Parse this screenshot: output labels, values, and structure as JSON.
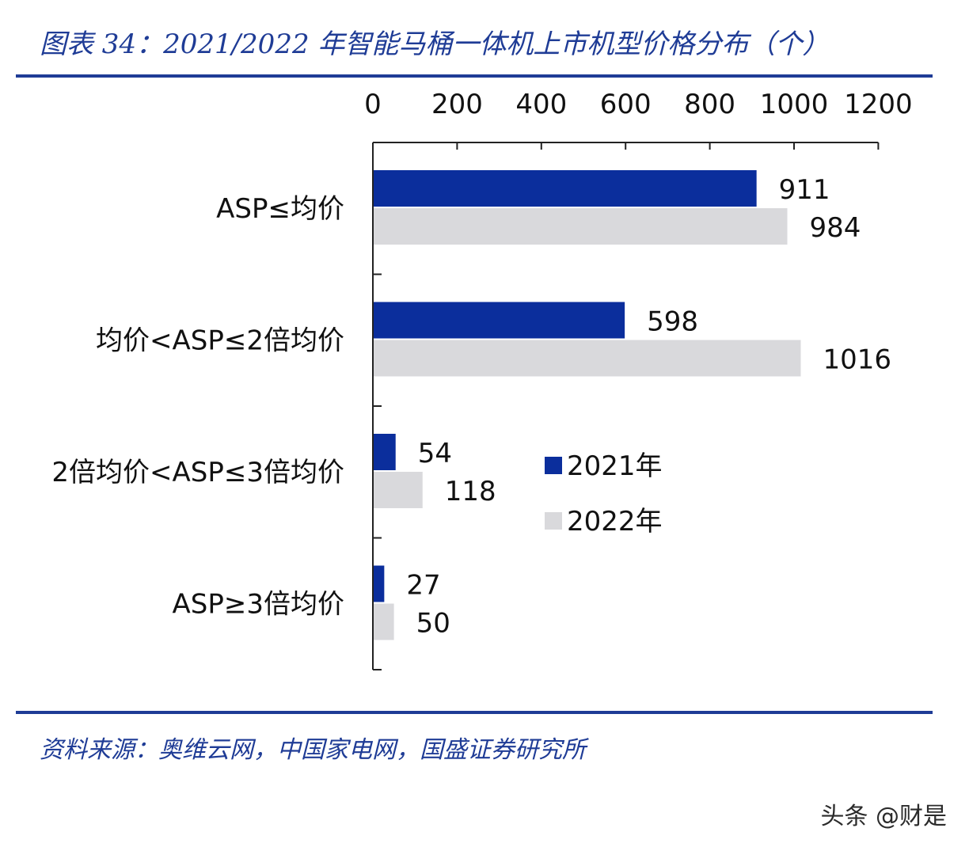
{
  "header": {
    "title": "图表 34：2021/2022 年智能马桶一体机上市机型价格分布（个）"
  },
  "footer": {
    "source": "资料来源：奥维云网，中国家电网，国盛证券研究所",
    "watermark": "头条 @财是"
  },
  "chart_data": {
    "type": "bar",
    "orientation": "horizontal",
    "title": "图表 34：2021/2022 年智能马桶一体机上市机型价格分布（个）",
    "xlabel": "",
    "ylabel": "",
    "xlim": [
      0,
      1200
    ],
    "ticks": [
      "0",
      "200",
      "400",
      "600",
      "800",
      "1000",
      "1200"
    ],
    "tick_values": [
      0,
      200,
      400,
      600,
      800,
      1000,
      1200
    ],
    "axis_position": "top",
    "grid": false,
    "legend_position": "center-right",
    "categories": [
      "ASP≤均价",
      "均价<ASP≤2倍均价",
      "2倍均价<ASP≤3倍均价",
      "ASP≥3倍均价"
    ],
    "series": [
      {
        "name": "2021年",
        "values": [
          911,
          598,
          54,
          27
        ],
        "color": "#0b2e9c"
      },
      {
        "name": "2022年",
        "values": [
          984,
          1016,
          118,
          50
        ],
        "color": "#d9d9dc"
      }
    ]
  }
}
